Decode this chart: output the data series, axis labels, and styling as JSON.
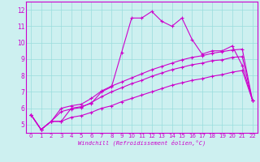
{
  "xlabel": "Windchill (Refroidissement éolien,°C)",
  "bg_color": "#cdf0f0",
  "grid_color": "#99dddd",
  "line_color": "#cc00cc",
  "xlim": [
    -0.5,
    22.5
  ],
  "ylim": [
    4.5,
    12.5
  ],
  "xticks": [
    0,
    1,
    2,
    3,
    4,
    5,
    6,
    7,
    8,
    9,
    10,
    11,
    12,
    13,
    14,
    15,
    16,
    17,
    18,
    19,
    20,
    21,
    22
  ],
  "yticks": [
    5,
    6,
    7,
    8,
    9,
    10,
    11,
    12
  ],
  "line1_x": [
    0,
    1,
    2,
    3,
    4,
    5,
    6,
    7,
    8,
    9,
    10,
    11,
    12,
    13,
    14,
    15,
    16,
    17,
    18,
    19,
    20,
    21,
    22
  ],
  "line1_y": [
    5.6,
    4.7,
    5.2,
    5.2,
    6.0,
    6.1,
    6.3,
    7.0,
    7.3,
    9.4,
    11.5,
    11.5,
    11.9,
    11.3,
    11.0,
    11.5,
    10.2,
    9.3,
    9.5,
    9.5,
    9.8,
    8.6,
    6.5
  ],
  "line2_x": [
    0,
    1,
    2,
    3,
    4,
    5,
    6,
    7,
    8,
    9,
    10,
    11,
    12,
    13,
    14,
    15,
    16,
    17,
    18,
    19,
    20,
    21,
    22
  ],
  "line2_y": [
    5.6,
    4.7,
    5.2,
    6.0,
    6.15,
    6.25,
    6.6,
    7.05,
    7.35,
    7.6,
    7.85,
    8.1,
    8.35,
    8.55,
    8.75,
    8.95,
    9.1,
    9.2,
    9.35,
    9.45,
    9.55,
    9.6,
    6.5
  ],
  "line3_x": [
    0,
    1,
    2,
    3,
    4,
    5,
    6,
    7,
    8,
    9,
    10,
    11,
    12,
    13,
    14,
    15,
    16,
    17,
    18,
    19,
    20,
    21,
    22
  ],
  "line3_y": [
    5.6,
    4.7,
    5.2,
    5.8,
    5.95,
    6.05,
    6.35,
    6.7,
    7.0,
    7.25,
    7.5,
    7.7,
    7.95,
    8.15,
    8.35,
    8.5,
    8.65,
    8.75,
    8.9,
    8.95,
    9.1,
    9.15,
    6.5
  ],
  "line4_x": [
    0,
    1,
    2,
    3,
    4,
    5,
    6,
    7,
    8,
    9,
    10,
    11,
    12,
    13,
    14,
    15,
    16,
    17,
    18,
    19,
    20,
    21,
    22
  ],
  "line4_y": [
    5.6,
    4.7,
    5.2,
    5.2,
    5.45,
    5.55,
    5.75,
    6.0,
    6.15,
    6.4,
    6.6,
    6.8,
    7.0,
    7.2,
    7.4,
    7.55,
    7.7,
    7.8,
    7.95,
    8.05,
    8.2,
    8.3,
    6.5
  ]
}
